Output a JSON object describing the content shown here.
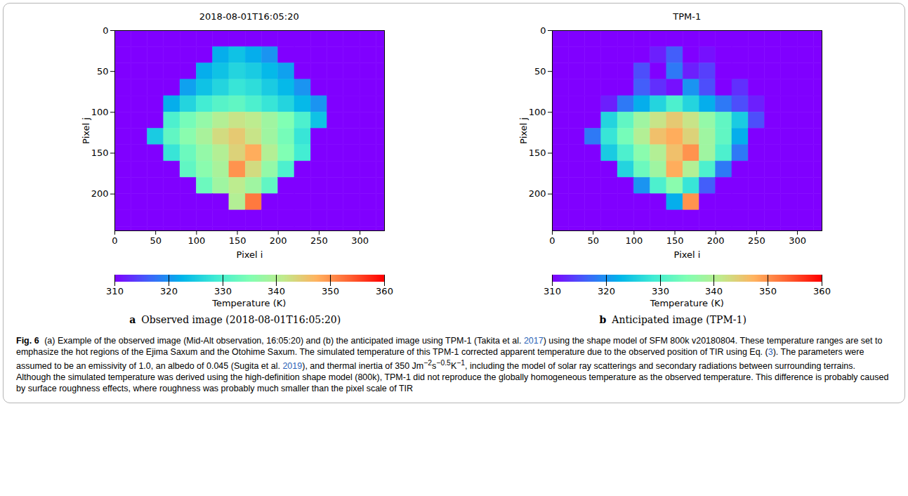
{
  "chart_data": [
    {
      "type": "heatmap",
      "title": "2018-08-01T16:05:20",
      "subcaption": {
        "letter": "a",
        "text": "Observed image (2018-08-01T16:05:20)"
      },
      "x_label": "Pixel i",
      "y_label": "Pixel j",
      "xlim": [
        0,
        330
      ],
      "ylim": [
        0,
        245
      ],
      "xticks": [
        0,
        50,
        100,
        150,
        200,
        250,
        300
      ],
      "yticks": [
        0,
        50,
        100,
        150,
        200
      ],
      "i_edges": [
        0,
        20,
        40,
        60,
        80,
        100,
        120,
        140,
        160,
        180,
        200,
        220,
        240,
        260,
        280,
        300,
        320,
        340
      ],
      "j_edges": [
        0,
        20,
        40,
        60,
        80,
        100,
        120,
        140,
        160,
        180,
        200,
        220,
        240,
        260
      ],
      "cells": [
        [
          310,
          310,
          310,
          310,
          310,
          310,
          310,
          310,
          310,
          310,
          310,
          310,
          310,
          310,
          310,
          310,
          310
        ],
        [
          310,
          310,
          310,
          310,
          310,
          310,
          322,
          324,
          322,
          320,
          310,
          310,
          310,
          310,
          310,
          310,
          310
        ],
        [
          310,
          310,
          310,
          310,
          310,
          322,
          324,
          326,
          325,
          323,
          321,
          310,
          310,
          310,
          310,
          310,
          310
        ],
        [
          310,
          310,
          310,
          310,
          321,
          324,
          326,
          328,
          327,
          325,
          323,
          320,
          310,
          310,
          310,
          310,
          310
        ],
        [
          310,
          310,
          310,
          322,
          326,
          329,
          331,
          332,
          330,
          328,
          326,
          323,
          320,
          310,
          310,
          310,
          310
        ],
        [
          310,
          310,
          310,
          330,
          334,
          337,
          340,
          342,
          341,
          338,
          335,
          330,
          324,
          310,
          310,
          310,
          310
        ],
        [
          310,
          310,
          325,
          332,
          336,
          339,
          343,
          345,
          342,
          338,
          334,
          328,
          310,
          310,
          310,
          310,
          310
        ],
        [
          310,
          310,
          310,
          328,
          333,
          337,
          340,
          344,
          348,
          340,
          335,
          329,
          310,
          310,
          310,
          310,
          310
        ],
        [
          310,
          310,
          310,
          310,
          332,
          336,
          339,
          350,
          343,
          337,
          330,
          310,
          310,
          310,
          310,
          310,
          310
        ],
        [
          310,
          310,
          310,
          310,
          310,
          333,
          338,
          341,
          338,
          332,
          310,
          310,
          310,
          310,
          310,
          310,
          310
        ],
        [
          310,
          310,
          310,
          310,
          310,
          310,
          310,
          340,
          352,
          310,
          310,
          310,
          310,
          310,
          310,
          310,
          310
        ],
        [
          310,
          310,
          310,
          310,
          310,
          310,
          310,
          310,
          310,
          310,
          310,
          310,
          310,
          310,
          310,
          310,
          310
        ],
        [
          310,
          310,
          310,
          310,
          310,
          310,
          310,
          310,
          310,
          310,
          310,
          310,
          310,
          310,
          310,
          310,
          310
        ]
      ],
      "colorbar": {
        "label": "Temperature (K)",
        "range": [
          310,
          360
        ],
        "ticks": [
          310,
          320,
          330,
          340,
          350,
          360
        ]
      }
    },
    {
      "type": "heatmap",
      "title": "TPM-1",
      "subcaption": {
        "letter": "b",
        "text": "Anticipated image (TPM-1)"
      },
      "x_label": "Pixel i",
      "y_label": "Pixel j",
      "xlim": [
        0,
        330
      ],
      "ylim": [
        0,
        245
      ],
      "xticks": [
        0,
        50,
        100,
        150,
        200,
        250,
        300
      ],
      "yticks": [
        0,
        50,
        100,
        150,
        200
      ],
      "i_edges": [
        0,
        20,
        40,
        60,
        80,
        100,
        120,
        140,
        160,
        180,
        200,
        220,
        240,
        260,
        280,
        300,
        320,
        340
      ],
      "j_edges": [
        0,
        20,
        40,
        60,
        80,
        100,
        120,
        140,
        160,
        180,
        200,
        220,
        240,
        260
      ],
      "cells": [
        [
          310,
          310,
          310,
          310,
          310,
          310,
          310,
          310,
          310,
          310,
          310,
          310,
          310,
          310,
          310,
          310,
          310
        ],
        [
          310,
          310,
          310,
          310,
          310,
          310,
          312,
          316,
          310,
          311,
          310,
          310,
          310,
          310,
          310,
          310,
          310
        ],
        [
          310,
          310,
          310,
          310,
          310,
          315,
          310,
          318,
          312,
          314,
          310,
          310,
          310,
          310,
          310,
          310,
          310
        ],
        [
          310,
          310,
          310,
          310,
          310,
          316,
          313,
          311,
          320,
          315,
          310,
          313,
          310,
          310,
          310,
          310,
          310
        ],
        [
          310,
          310,
          310,
          312,
          318,
          322,
          326,
          330,
          326,
          322,
          318,
          315,
          312,
          310,
          310,
          310,
          310
        ],
        [
          310,
          310,
          310,
          326,
          332,
          338,
          342,
          345,
          342,
          337,
          332,
          325,
          315,
          310,
          310,
          310,
          310
        ],
        [
          310,
          310,
          318,
          328,
          334,
          340,
          346,
          348,
          344,
          338,
          332,
          322,
          310,
          310,
          310,
          310,
          310
        ],
        [
          310,
          310,
          310,
          325,
          330,
          336,
          340,
          346,
          350,
          338,
          330,
          318,
          310,
          310,
          310,
          310,
          310
        ],
        [
          310,
          310,
          310,
          310,
          326,
          333,
          338,
          348,
          340,
          330,
          318,
          310,
          310,
          310,
          310,
          310,
          310
        ],
        [
          310,
          310,
          310,
          310,
          310,
          320,
          330,
          336,
          328,
          316,
          310,
          310,
          310,
          310,
          310,
          310,
          310
        ],
        [
          310,
          310,
          310,
          310,
          310,
          310,
          310,
          322,
          350,
          310,
          310,
          310,
          310,
          310,
          310,
          310,
          310
        ],
        [
          310,
          310,
          310,
          310,
          310,
          310,
          310,
          310,
          310,
          310,
          310,
          310,
          310,
          310,
          310,
          310,
          310
        ],
        [
          310,
          310,
          310,
          310,
          310,
          310,
          310,
          310,
          310,
          310,
          310,
          310,
          310,
          310,
          310,
          310,
          310
        ]
      ],
      "colorbar": {
        "label": "Temperature (K)",
        "range": [
          310,
          360
        ],
        "ticks": [
          310,
          320,
          330,
          340,
          350,
          360
        ]
      }
    }
  ],
  "caption": [
    {
      "text": "Fig. 6",
      "style": "bold"
    },
    {
      "text": " (a) Example of the observed image (Mid-Alt observation, 16:05:20) and (b) the anticipated image using TPM-1 (Takita et al. ",
      "style": "plain"
    },
    {
      "text": "2017",
      "style": "link"
    },
    {
      "text": ") using the shape model of SFM 800k v20180804. These temperature ranges are set to emphasize the hot regions of the Ejima Saxum and the Otohime Saxum. The simulated temperature of this TPM-1 corrected apparent temperature due to the observed position of TIR using Eq. (",
      "style": "plain"
    },
    {
      "text": "3",
      "style": "link"
    },
    {
      "text": "). The parameters were assumed to be an emissivity of 1.0, an albedo of 0.045 (Sugita et al. ",
      "style": "plain"
    },
    {
      "text": "2019",
      "style": "link"
    },
    {
      "text": "), and thermal inertia of 350 Jm",
      "style": "plain"
    },
    {
      "text": "−2",
      "style": "sup"
    },
    {
      "text": "s",
      "style": "plain"
    },
    {
      "text": "−0.5",
      "style": "sup"
    },
    {
      "text": "K",
      "style": "plain"
    },
    {
      "text": "−1",
      "style": "sup"
    },
    {
      "text": ", including the model of solar ray scatterings and secondary radiations between surrounding terrains. Although the simulated temperature was derived using the high-definition shape model (800k), TPM-1 did not reproduce the globally homogeneous temperature as the observed temperature. This difference is probably caused by surface roughness effects, where roughness was probably much smaller than the pixel scale of TIR",
      "style": "plain"
    }
  ]
}
